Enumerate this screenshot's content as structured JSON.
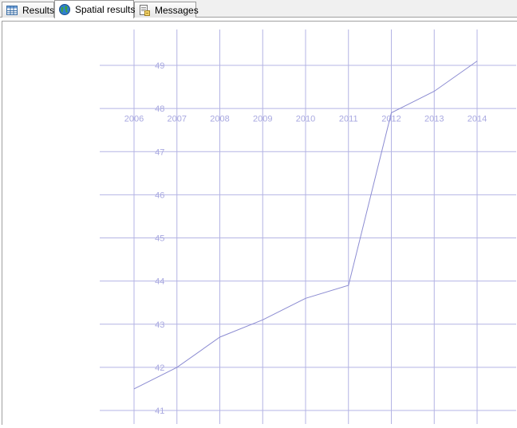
{
  "tabs": [
    {
      "label": "Results",
      "icon": "grid-icon",
      "active": false
    },
    {
      "label": "Spatial results",
      "icon": "globe-icon",
      "active": true
    },
    {
      "label": "Messages",
      "icon": "messages-icon",
      "active": false
    }
  ],
  "colors": {
    "grid": "#b4b4e4",
    "line": "#8c8cd2",
    "label": "#a8a8e0"
  },
  "chart_data": {
    "type": "line",
    "x_tick_labels": [
      "2006",
      "2007",
      "2008",
      "2009",
      "2010",
      "2011",
      "2012",
      "2013",
      "2014"
    ],
    "y_tick_labels": [
      "41",
      "42",
      "43",
      "44",
      "45",
      "46",
      "47",
      "48",
      "49"
    ],
    "xlim": [
      2006,
      2014
    ],
    "ylim": [
      41,
      49
    ],
    "series": [
      {
        "x": [
          2006,
          2007,
          2008,
          2009,
          2010,
          2011,
          2012,
          2013,
          2014
        ],
        "y": [
          41.5,
          42.0,
          42.7,
          43.1,
          43.6,
          43.9,
          47.9,
          48.4,
          49.1
        ]
      }
    ],
    "grid": true
  }
}
